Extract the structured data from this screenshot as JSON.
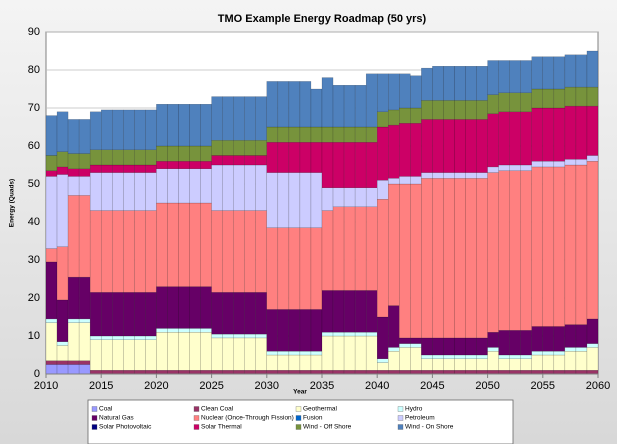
{
  "chart_data": {
    "type": "stacked_bar",
    "title": "TMO Example Energy Roadmap (50 yrs)",
    "ylabel": "Energy (Quads)",
    "xlabel": "Year",
    "x": [
      2010,
      2011,
      2012,
      2013,
      2014,
      2015,
      2016,
      2017,
      2018,
      2019,
      2020,
      2021,
      2022,
      2023,
      2024,
      2025,
      2026,
      2027,
      2028,
      2029,
      2030,
      2031,
      2032,
      2033,
      2034,
      2035,
      2036,
      2037,
      2038,
      2039,
      2040,
      2041,
      2042,
      2043,
      2044,
      2045,
      2046,
      2047,
      2048,
      2049,
      2050,
      2051,
      2052,
      2053,
      2054,
      2055,
      2056,
      2057,
      2058,
      2059
    ],
    "xlim": [
      2010,
      2060
    ],
    "xticks": [
      2010,
      2015,
      2020,
      2025,
      2030,
      2035,
      2040,
      2045,
      2050,
      2055,
      2060
    ],
    "ylim": [
      0,
      90
    ],
    "yticks": [
      0,
      10,
      20,
      30,
      40,
      50,
      60,
      70,
      80,
      90
    ],
    "grid": true,
    "series": [
      {
        "name": "Coal",
        "color": "#9999ff",
        "values": [
          2.5,
          2.5,
          2.5,
          2.5,
          0,
          0,
          0,
          0,
          0,
          0,
          0,
          0,
          0,
          0,
          0,
          0,
          0,
          0,
          0,
          0,
          0,
          0,
          0,
          0,
          0,
          0,
          0,
          0,
          0,
          0,
          0,
          0,
          0,
          0,
          0,
          0,
          0,
          0,
          0,
          0,
          0,
          0,
          0,
          0,
          0,
          0,
          0,
          0,
          0,
          0
        ]
      },
      {
        "name": "Clean Coal",
        "color": "#993366",
        "values": [
          1,
          1,
          1,
          1,
          1,
          1,
          1,
          1,
          1,
          1,
          1,
          1,
          1,
          1,
          1,
          1,
          1,
          1,
          1,
          1,
          1,
          1,
          1,
          1,
          1,
          1,
          1,
          1,
          1,
          1,
          1,
          1,
          1,
          1,
          1,
          1,
          1,
          1,
          1,
          1,
          1,
          1,
          1,
          1,
          1,
          1,
          1,
          1,
          1,
          1
        ]
      },
      {
        "name": "Geothermal",
        "color": "#ffffcc",
        "values": [
          10,
          4,
          10,
          10,
          8,
          8,
          8,
          8,
          8,
          8,
          10,
          10,
          10,
          10,
          10,
          8.5,
          8.5,
          8.5,
          8.5,
          8.5,
          4,
          4,
          4,
          4,
          4,
          9,
          9,
          9,
          9,
          9,
          2,
          5,
          6,
          6,
          3,
          3,
          3,
          3,
          3,
          3,
          5,
          3,
          3,
          3,
          4,
          4,
          4,
          5,
          5,
          6
        ]
      },
      {
        "name": "Hydro",
        "color": "#ccffff",
        "values": [
          1,
          1,
          1,
          1,
          1,
          1,
          1,
          1,
          1,
          1,
          1,
          1,
          1,
          1,
          1,
          1,
          1,
          1,
          1,
          1,
          1,
          1,
          1,
          1,
          1,
          1,
          1,
          1,
          1,
          1,
          1,
          1,
          1,
          1,
          1,
          1,
          1,
          1,
          1,
          1,
          1,
          1,
          1,
          1,
          1,
          1,
          1,
          1,
          1,
          1
        ]
      },
      {
        "name": "Natural Gas",
        "color": "#660066",
        "values": [
          15,
          11,
          11,
          11,
          11.5,
          11.5,
          11.5,
          11.5,
          11.5,
          11.5,
          11,
          11,
          11,
          11,
          11,
          11,
          11,
          11,
          11,
          11,
          11,
          11,
          11,
          11,
          11,
          11,
          11,
          11,
          11,
          11,
          11,
          11,
          1.5,
          1.5,
          4.5,
          4.5,
          4.5,
          4.5,
          4.5,
          4.5,
          4,
          6.5,
          6.5,
          6.5,
          6.5,
          6.5,
          6.5,
          6,
          6,
          6.5
        ]
      },
      {
        "name": "Nuclear (Once-Through Fission)",
        "color": "#ff8080",
        "values": [
          3.5,
          14,
          21.5,
          21.5,
          21.5,
          21.5,
          21.5,
          21.5,
          21.5,
          21.5,
          22,
          22,
          22,
          22,
          22,
          21.5,
          21.5,
          21.5,
          21.5,
          21.5,
          21.5,
          21.5,
          21.5,
          21.5,
          21.5,
          21,
          22,
          22,
          22,
          22,
          31,
          32,
          40.5,
          40.5,
          42,
          42,
          42,
          42,
          42,
          42,
          42,
          42,
          42,
          42,
          42,
          42,
          42,
          42,
          42,
          41.5
        ]
      },
      {
        "name": "Fusion",
        "color": "#0066cc",
        "values": [
          0,
          0,
          0,
          0,
          0,
          0,
          0,
          0,
          0,
          0,
          0,
          0,
          0,
          0,
          0,
          0,
          0,
          0,
          0,
          0,
          0,
          0,
          0,
          0,
          0,
          0,
          0,
          0,
          0,
          0,
          0,
          0,
          0,
          0,
          0,
          0,
          0,
          0,
          0,
          0,
          0,
          0,
          0,
          0,
          0,
          0,
          0,
          0,
          0,
          0
        ]
      },
      {
        "name": "Petroleum",
        "color": "#ccccff",
        "values": [
          19,
          19,
          5,
          5,
          10,
          10,
          10,
          10,
          10,
          10,
          9,
          9,
          9,
          9,
          9,
          12,
          12,
          12,
          12,
          12,
          14.5,
          14.5,
          14.5,
          14.5,
          14.5,
          6,
          5,
          5,
          5,
          5,
          5,
          1.5,
          2,
          2,
          1.5,
          1.5,
          1.5,
          1.5,
          1.5,
          1.5,
          1.5,
          1.5,
          1.5,
          1.5,
          1.5,
          1.5,
          1.5,
          1.5,
          1.5,
          1.5
        ]
      },
      {
        "name": "Solar Photovoltaic",
        "color": "#000080",
        "values": [
          0,
          0,
          0,
          0,
          0,
          0,
          0,
          0,
          0,
          0,
          0,
          0,
          0,
          0,
          0,
          0,
          0,
          0,
          0,
          0,
          0,
          0,
          0,
          0,
          0,
          0,
          0,
          0,
          0,
          0,
          0,
          0,
          0,
          0,
          0,
          0,
          0,
          0,
          0,
          0,
          0,
          0,
          0,
          0,
          0,
          0,
          0,
          0,
          0,
          0
        ]
      },
      {
        "name": "Solar Thermal",
        "color": "#cc0066",
        "values": [
          1.5,
          2,
          2,
          2,
          2,
          2,
          2,
          2,
          2,
          2,
          2,
          2,
          2,
          2,
          2,
          2.5,
          2.5,
          2.5,
          2.5,
          2.5,
          8,
          8,
          8,
          8,
          8,
          12,
          12,
          12,
          12,
          12,
          14,
          14,
          14,
          14,
          14,
          14,
          14,
          14,
          14,
          14,
          14,
          14,
          14,
          14,
          14,
          14,
          14,
          14,
          14,
          13
        ]
      },
      {
        "name": "Wind - Off Shore",
        "color": "#77933c",
        "values": [
          4,
          4,
          4,
          4,
          4,
          4,
          4,
          4,
          4,
          4,
          4,
          4,
          4,
          4,
          4,
          4,
          4,
          4,
          4,
          4,
          4,
          4,
          4,
          4,
          4,
          4,
          4,
          4,
          4,
          4,
          4,
          4,
          4,
          4,
          5,
          5,
          5,
          5,
          5,
          5,
          5,
          5,
          5,
          5,
          5,
          5,
          5,
          5,
          5,
          5
        ]
      },
      {
        "name": "Wind - On Shore",
        "color": "#4f81bd",
        "values": [
          10.5,
          10.5,
          9,
          9,
          10,
          10.5,
          10.5,
          10.5,
          10.5,
          10.5,
          11,
          11,
          11,
          11,
          11,
          11.5,
          11.5,
          11.5,
          11.5,
          11.5,
          12,
          12,
          12,
          12,
          10,
          13,
          11,
          11,
          11,
          14,
          10,
          9.5,
          9,
          8.5,
          8.5,
          9,
          9,
          9,
          9,
          9,
          9,
          8.5,
          8.5,
          8.5,
          8.5,
          8.5,
          8.5,
          8.5,
          8.5,
          9.5
        ]
      }
    ]
  }
}
